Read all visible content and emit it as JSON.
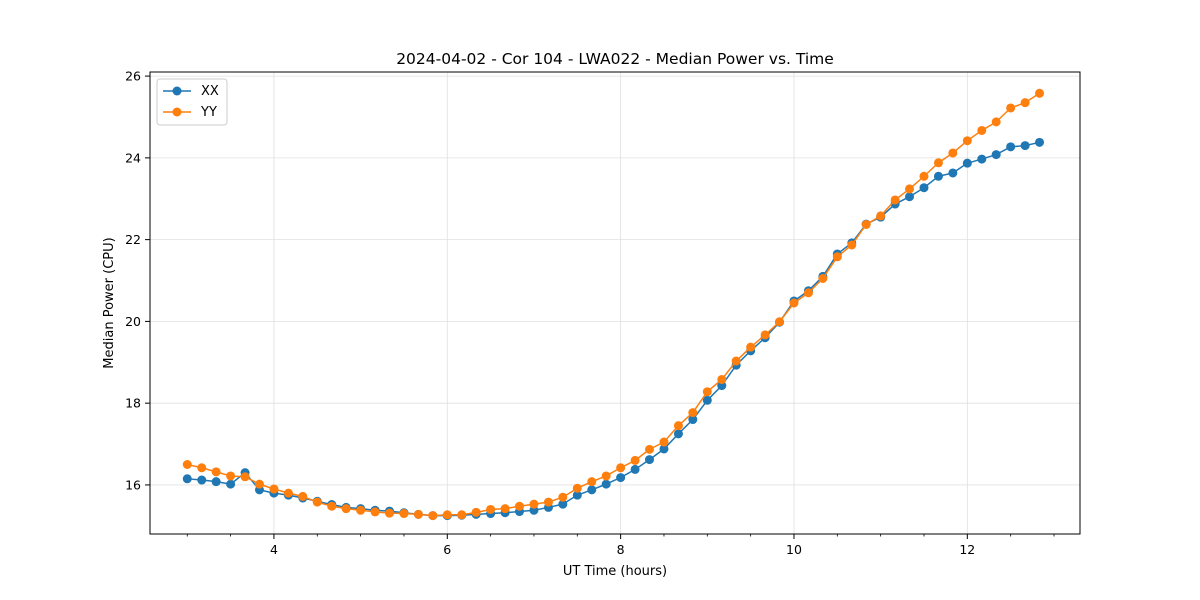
{
  "chart_data": {
    "type": "line",
    "title": "2024-04-02 - Cor 104 - LWA022 - Median Power vs. Time",
    "xlabel": "UT Time (hours)",
    "ylabel": "Median Power (CPU)",
    "xlim": [
      2.57,
      13.3
    ],
    "ylim": [
      14.8,
      26.1
    ],
    "xticks": [
      4,
      6,
      8,
      10,
      12
    ],
    "yticks": [
      16,
      18,
      20,
      22,
      24,
      26
    ],
    "grid": true,
    "legend_position": "top-left",
    "series": [
      {
        "name": "XX",
        "color": "#1f77b4",
        "x": [
          3.0,
          3.167,
          3.333,
          3.5,
          3.667,
          3.833,
          4.0,
          4.167,
          4.333,
          4.5,
          4.667,
          4.833,
          5.0,
          5.167,
          5.333,
          5.5,
          5.667,
          5.833,
          6.0,
          6.167,
          6.333,
          6.5,
          6.667,
          6.833,
          7.0,
          7.167,
          7.333,
          7.5,
          7.667,
          7.833,
          8.0,
          8.167,
          8.333,
          8.5,
          8.667,
          8.833,
          9.0,
          9.167,
          9.333,
          9.5,
          9.667,
          9.833,
          10.0,
          10.167,
          10.333,
          10.5,
          10.667,
          10.833,
          11.0,
          11.167,
          11.333,
          11.5,
          11.667,
          11.833,
          12.0,
          12.167,
          12.333,
          12.5,
          12.667,
          12.833
        ],
        "values": [
          16.15,
          16.12,
          16.08,
          16.02,
          16.3,
          15.88,
          15.8,
          15.75,
          15.68,
          15.6,
          15.52,
          15.45,
          15.42,
          15.38,
          15.36,
          15.32,
          15.28,
          15.25,
          15.25,
          15.26,
          15.28,
          15.3,
          15.32,
          15.35,
          15.38,
          15.45,
          15.53,
          15.75,
          15.88,
          16.02,
          16.18,
          16.38,
          16.62,
          16.88,
          17.25,
          17.6,
          18.07,
          18.43,
          18.93,
          19.28,
          19.6,
          19.98,
          20.5,
          20.75,
          21.1,
          21.65,
          21.92,
          22.38,
          22.55,
          22.87,
          23.05,
          23.27,
          23.55,
          23.63,
          23.87,
          23.97,
          24.08,
          24.27,
          24.3,
          24.38
        ]
      },
      {
        "name": "YY",
        "color": "#ff7f0e",
        "x": [
          3.0,
          3.167,
          3.333,
          3.5,
          3.667,
          3.833,
          4.0,
          4.167,
          4.333,
          4.5,
          4.667,
          4.833,
          5.0,
          5.167,
          5.333,
          5.5,
          5.667,
          5.833,
          6.0,
          6.167,
          6.333,
          6.5,
          6.667,
          6.833,
          7.0,
          7.167,
          7.333,
          7.5,
          7.667,
          7.833,
          8.0,
          8.167,
          8.333,
          8.5,
          8.667,
          8.833,
          9.0,
          9.167,
          9.333,
          9.5,
          9.667,
          9.833,
          10.0,
          10.167,
          10.333,
          10.5,
          10.667,
          10.833,
          11.0,
          11.167,
          11.333,
          11.5,
          11.667,
          11.833,
          12.0,
          12.167,
          12.333,
          12.5,
          12.667,
          12.833
        ],
        "values": [
          16.5,
          16.42,
          16.32,
          16.22,
          16.2,
          16.02,
          15.9,
          15.8,
          15.72,
          15.58,
          15.48,
          15.42,
          15.38,
          15.34,
          15.31,
          15.3,
          15.28,
          15.25,
          15.27,
          15.27,
          15.33,
          15.4,
          15.42,
          15.48,
          15.53,
          15.58,
          15.7,
          15.92,
          16.08,
          16.22,
          16.42,
          16.6,
          16.87,
          17.05,
          17.45,
          17.77,
          18.28,
          18.58,
          19.03,
          19.37,
          19.67,
          19.99,
          20.45,
          20.7,
          21.05,
          21.58,
          21.87,
          22.37,
          22.58,
          22.97,
          23.24,
          23.55,
          23.88,
          24.12,
          24.42,
          24.67,
          24.88,
          25.22,
          25.35,
          25.58
        ]
      }
    ]
  }
}
